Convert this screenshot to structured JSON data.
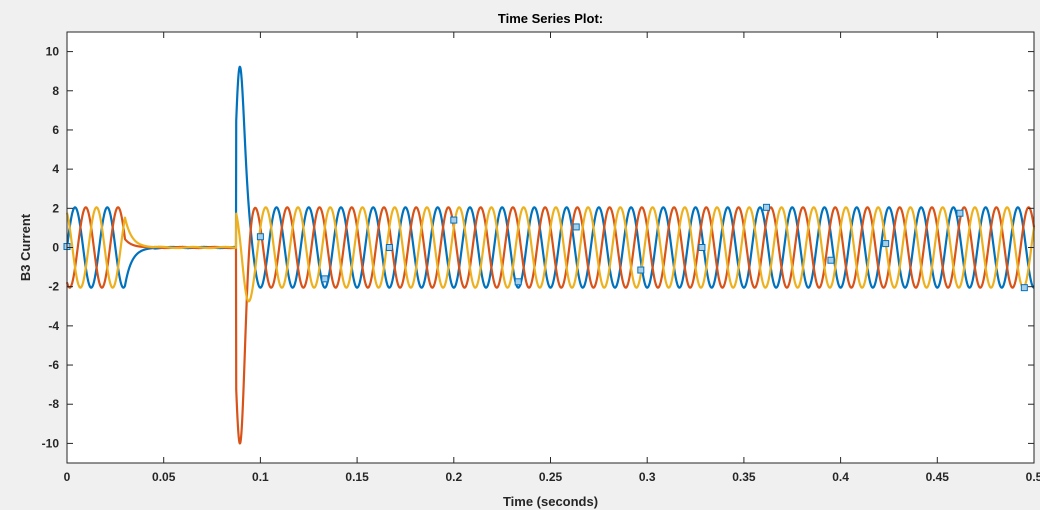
{
  "chart_data": {
    "type": "line",
    "title": "Time Series Plot:",
    "xlabel": "Time (seconds)",
    "ylabel": "B3 Current",
    "xlim": [
      0,
      0.5
    ],
    "ylim": [
      -11,
      11
    ],
    "x_ticks": [
      0,
      0.05,
      0.1,
      0.15,
      0.2,
      0.25,
      0.3,
      0.35,
      0.4,
      0.45,
      0.5
    ],
    "x_tick_labels": [
      "0",
      "0.05",
      "0.1",
      "0.15",
      "0.2",
      "0.25",
      "0.3",
      "0.35",
      "0.4",
      "0.45",
      "0.5"
    ],
    "y_ticks": [
      -10,
      -8,
      -6,
      -4,
      -2,
      0,
      2,
      4,
      6,
      8,
      10
    ],
    "y_tick_labels": [
      "-10",
      "-8",
      "-6",
      "-4",
      "-2",
      "0",
      "2",
      "4",
      "6",
      "8",
      "10"
    ],
    "grid": false,
    "legend": "none",
    "signal": {
      "frequency_hz": 60,
      "steady_amplitude": 2.05,
      "fault_start_s": 0.03,
      "reclose_s": 0.0875,
      "peak_value": 10.05,
      "peak_time_s": 0.089
    },
    "series": [
      {
        "color": "#0072BD",
        "phase_deg": 0
      },
      {
        "color": "#D95319",
        "phase_deg": -120
      },
      {
        "color": "#EDB120",
        "phase_deg": 120
      }
    ],
    "markers": {
      "color": "#0072BD",
      "fill": "#a9cfe8",
      "points": [
        {
          "x": 0.0,
          "y": 0.05
        },
        {
          "x": 0.1,
          "y": 0.55
        },
        {
          "x": 0.1333,
          "y": -1.6
        },
        {
          "x": 0.1667,
          "y": 0.0
        },
        {
          "x": 0.2,
          "y": 1.4
        },
        {
          "x": 0.2333,
          "y": -1.75
        },
        {
          "x": 0.2633,
          "y": 1.05
        },
        {
          "x": 0.2967,
          "y": -1.15
        },
        {
          "x": 0.3283,
          "y": 0.0
        },
        {
          "x": 0.3617,
          "y": 2.05
        },
        {
          "x": 0.395,
          "y": -0.65
        },
        {
          "x": 0.4233,
          "y": 0.2
        },
        {
          "x": 0.4617,
          "y": 1.75
        },
        {
          "x": 0.495,
          "y": -2.05
        }
      ]
    }
  }
}
